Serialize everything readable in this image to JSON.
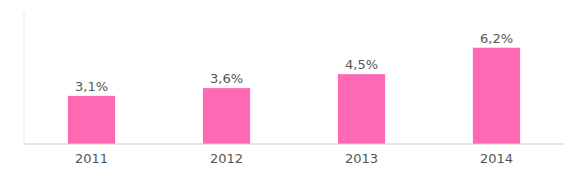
{
  "chart_data": {
    "type": "bar",
    "categories": [
      "2011",
      "2012",
      "2013",
      "2014"
    ],
    "values": [
      3.1,
      3.6,
      4.5,
      6.2
    ],
    "value_labels": [
      "3,1%",
      "3,6%",
      "4,5%",
      "6,2%"
    ],
    "data_labels": true,
    "color": "#FF69B4",
    "ylim": [
      0,
      8.5
    ],
    "tick_labels": "x"
  }
}
